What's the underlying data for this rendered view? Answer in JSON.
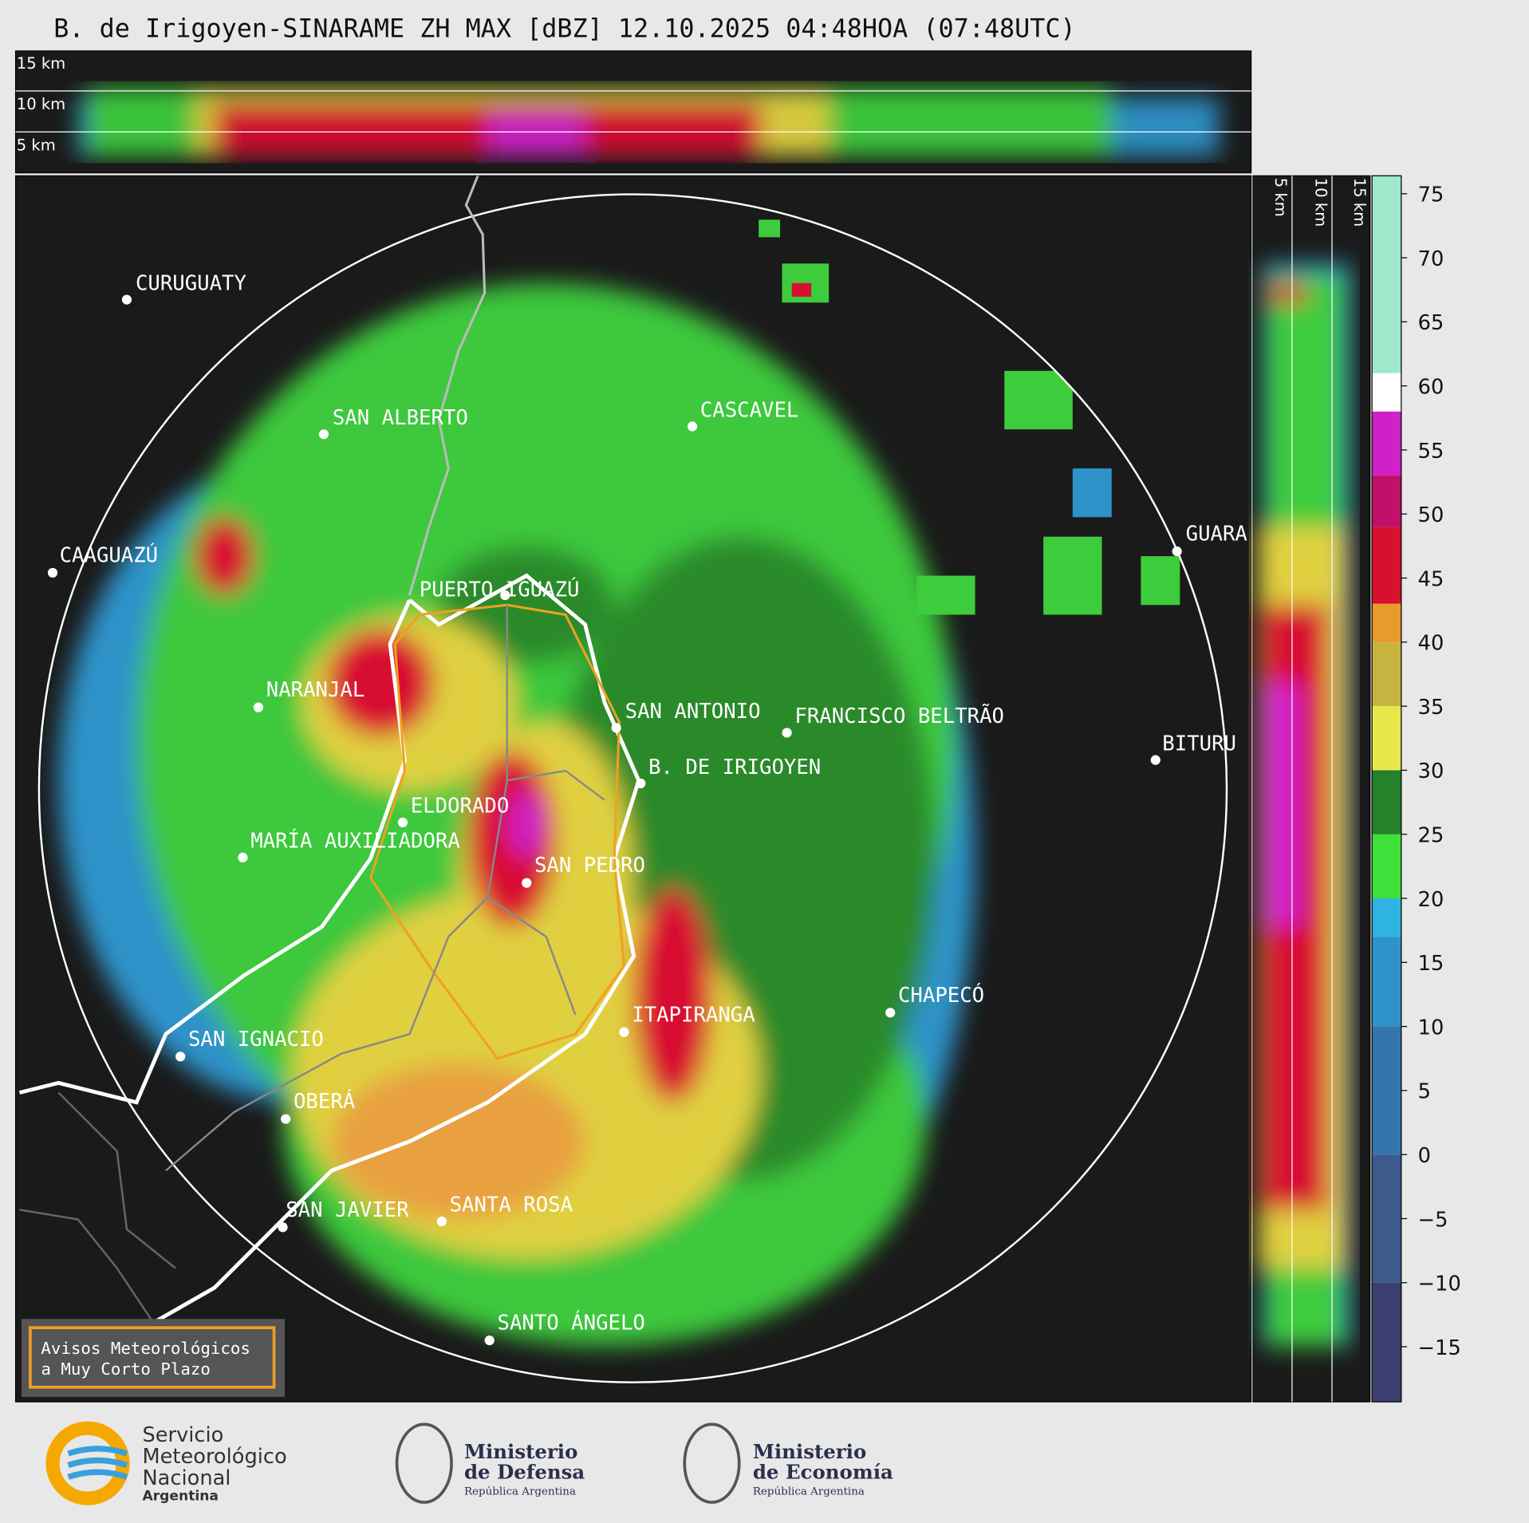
{
  "header": {
    "title": "B. de Irigoyen-SINARAME ZH MAX [dBZ] 12.10.2025 04:48HOA (07:48UTC)"
  },
  "top_panel": {
    "labels": [
      "15 km",
      "10 km",
      "5 km"
    ]
  },
  "side_panel": {
    "labels": [
      "5 km",
      "10 km",
      "15 km"
    ]
  },
  "cities": [
    "CURUGUATY",
    "SAN ALBERTO",
    "CASCAVEL",
    "CAAGUAZÚ",
    "GUARA",
    "PUERTO IGUAZÚ",
    "NARANJAL",
    "SAN ANTONIO",
    "FRANCISCO BELTRÃO",
    "B. DE IRIGOYEN",
    "BITURU",
    "ELDORADO",
    "MARÍA AUXILIADORA",
    "SAN PEDRO",
    "ITAPIRANGA",
    "CHAPECÓ",
    "SAN IGNACIO",
    "OBERÁ",
    "SAN JAVIER",
    "SANTA ROSA",
    "SANTO ÁNGELO"
  ],
  "warning_box": {
    "lines": [
      "Avisos Meteorológicos",
      "a Muy Corto Plazo"
    ]
  },
  "colorbar": {
    "lim": [
      -19.3,
      76.4
    ],
    "ticks": [
      75,
      70,
      65,
      60,
      55,
      50,
      45,
      40,
      35,
      30,
      25,
      20,
      15,
      10,
      5,
      0,
      {
        "value": -5,
        "label": "−5"
      },
      {
        "value": -10,
        "label": "−10"
      },
      {
        "value": -15,
        "label": "−15"
      }
    ],
    "bands": [
      {
        "from": -19.3,
        "to": -10,
        "color": "#3b3f70"
      },
      {
        "from": -10,
        "to": 0,
        "color": "#3d5a8c"
      },
      {
        "from": 0,
        "to": 10,
        "color": "#3575ad"
      },
      {
        "from": 10,
        "to": 17,
        "color": "#2d93c9"
      },
      {
        "from": 17,
        "to": 20,
        "color": "#2fb3e0"
      },
      {
        "from": 20,
        "to": 25,
        "color": "#3ee03a"
      },
      {
        "from": 25,
        "to": 30,
        "color": "#23822a"
      },
      {
        "from": 30,
        "to": 35,
        "color": "#e8e84a"
      },
      {
        "from": 35,
        "to": 40,
        "color": "#c8b440"
      },
      {
        "from": 40,
        "to": 43,
        "color": "#e89a2a"
      },
      {
        "from": 43,
        "to": 49,
        "color": "#d81030"
      },
      {
        "from": 49,
        "to": 53,
        "color": "#c0106a"
      },
      {
        "from": 53,
        "to": 58,
        "color": "#d020c8"
      },
      {
        "from": 58,
        "to": 61,
        "color": "#ffffff"
      },
      {
        "from": 61,
        "to": 76.4,
        "color": "#9ee8cc"
      }
    ]
  },
  "footer": {
    "smn": [
      "Servicio",
      "Meteorológico",
      "Nacional",
      "Argentina"
    ],
    "defensa": [
      "Ministerio",
      "de Defensa",
      "República Argentina"
    ],
    "economia": [
      "Ministerio",
      "de Economía",
      "República Argentina"
    ]
  }
}
